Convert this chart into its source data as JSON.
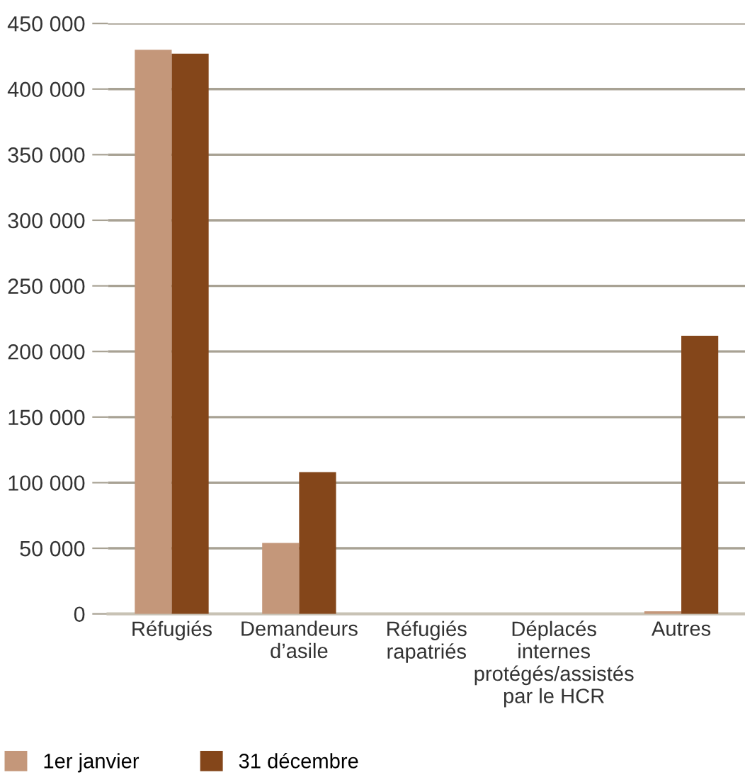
{
  "chart_data": {
    "type": "bar",
    "categories": [
      "Réfugiés",
      "Demandeurs\nd’asile",
      "Réfugiés\nrapatriés",
      "Déplacés\ninternes\nprotégés/assistés\npar le HCR",
      "Autres"
    ],
    "series": [
      {
        "name": "1er janvier",
        "color": "#c4977a",
        "values": [
          430000,
          54000,
          0,
          0,
          2000
        ]
      },
      {
        "name": "31 décembre",
        "color": "#84461a",
        "values": [
          427000,
          108000,
          0,
          0,
          212000
        ]
      }
    ],
    "ylim": [
      0,
      450000
    ],
    "yticks": [
      {
        "value": 0,
        "label": "0"
      },
      {
        "value": 50000,
        "label": "50 000"
      },
      {
        "value": 100000,
        "label": "100 000"
      },
      {
        "value": 150000,
        "label": "150 000"
      },
      {
        "value": 200000,
        "label": "200 000"
      },
      {
        "value": 250000,
        "label": "250 000"
      },
      {
        "value": 300000,
        "label": "300 000"
      },
      {
        "value": 350000,
        "label": "350 000"
      },
      {
        "value": 400000,
        "label": "400 000"
      },
      {
        "value": 450000,
        "label": "450 000"
      }
    ],
    "grid": "y",
    "legend": "bottom left"
  }
}
